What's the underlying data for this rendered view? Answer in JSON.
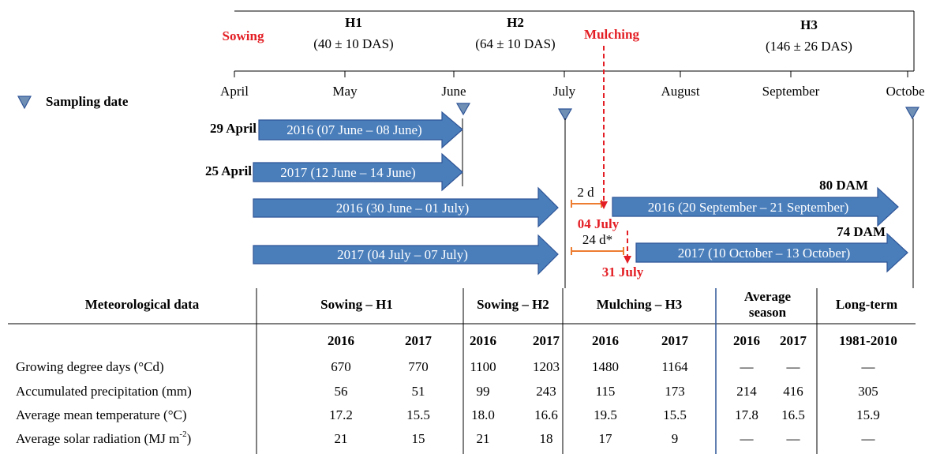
{
  "header": {
    "phases": [
      {
        "label": "H1",
        "days": "(40 ± 10 DAS)"
      },
      {
        "label": "H2",
        "days": "(64 ± 10 DAS)"
      },
      {
        "label": "H3",
        "days": "(146 ± 26 DAS)"
      }
    ],
    "events": [
      "Sowing",
      "Mulching"
    ]
  },
  "months": [
    "April",
    "May",
    "June",
    "July",
    "August",
    "September",
    "October"
  ],
  "legend": "Sampling date",
  "arrows": [
    {
      "start": "29 April",
      "label": "2016 (07 June – 08 June)"
    },
    {
      "start": "25 April",
      "label": "2017 (12 June – 14 June)"
    },
    {
      "label": "2016 (30 June – 01 July)"
    },
    {
      "label": "2017 (04 July – 07 July)"
    },
    {
      "label": "2016 (20 September – 21 September)",
      "end": "80 DAM"
    },
    {
      "label": "2017 (10 October – 13 October)",
      "end": "74 DAM"
    }
  ],
  "intervals": [
    {
      "label": "2 d",
      "date": "04 July"
    },
    {
      "label": "24 d*",
      "date": "31 July"
    }
  ],
  "table": {
    "groups": [
      "Meteorological data",
      "Sowing – H1",
      "Sowing – H2",
      "Mulching – H3",
      "Average season",
      "Long-term"
    ],
    "years": [
      "2016",
      "2017",
      "2016",
      "2017",
      "2016",
      "2017",
      "2016",
      "2017",
      "1981-2010"
    ],
    "rows": [
      {
        "label": "Growing degree days (°Cd)",
        "values": [
          "670",
          "770",
          "1100",
          "1203",
          "1480",
          "1164",
          "—",
          "—",
          "—"
        ]
      },
      {
        "label": "Accumulated precipitation (mm)",
        "values": [
          "56",
          "51",
          "99",
          "243",
          "115",
          "173",
          "214",
          "416",
          "305"
        ]
      },
      {
        "label": "Average mean temperature (°C)",
        "values": [
          "17.2",
          "15.5",
          "18.0",
          "16.6",
          "19.5",
          "15.5",
          "17.8",
          "16.5",
          "15.9"
        ]
      },
      {
        "label": "Average solar radiation (MJ m",
        "label_sup": "-2",
        "label_end": ")",
        "values": [
          "21",
          "15",
          "21",
          "18",
          "17",
          "9",
          "—",
          "—",
          "—"
        ]
      }
    ]
  }
}
